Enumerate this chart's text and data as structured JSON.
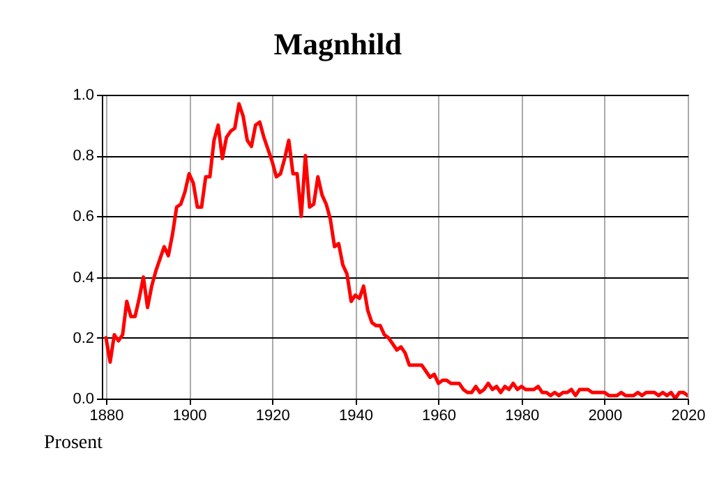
{
  "chart_data": {
    "type": "line",
    "title": "Magnhild",
    "ylabel": "Prosent",
    "x": [
      1880,
      1881,
      1882,
      1883,
      1884,
      1885,
      1886,
      1887,
      1888,
      1889,
      1890,
      1891,
      1892,
      1893,
      1894,
      1895,
      1896,
      1897,
      1898,
      1899,
      1900,
      1901,
      1902,
      1903,
      1904,
      1905,
      1906,
      1907,
      1908,
      1909,
      1910,
      1911,
      1912,
      1913,
      1914,
      1915,
      1916,
      1917,
      1918,
      1919,
      1920,
      1921,
      1922,
      1923,
      1924,
      1925,
      1926,
      1927,
      1928,
      1929,
      1930,
      1931,
      1932,
      1933,
      1934,
      1935,
      1936,
      1937,
      1938,
      1939,
      1940,
      1941,
      1942,
      1943,
      1944,
      1945,
      1946,
      1947,
      1948,
      1949,
      1950,
      1951,
      1952,
      1953,
      1954,
      1955,
      1956,
      1957,
      1958,
      1959,
      1960,
      1961,
      1962,
      1963,
      1964,
      1965,
      1966,
      1967,
      1968,
      1969,
      1970,
      1971,
      1972,
      1973,
      1974,
      1975,
      1976,
      1977,
      1978,
      1979,
      1980,
      1981,
      1982,
      1983,
      1984,
      1985,
      1986,
      1987,
      1988,
      1989,
      1990,
      1991,
      1992,
      1993,
      1994,
      1995,
      1996,
      1997,
      1998,
      1999,
      2000,
      2001,
      2002,
      2003,
      2004,
      2005,
      2006,
      2007,
      2008,
      2009,
      2010,
      2011,
      2012,
      2013,
      2014,
      2015,
      2016,
      2017,
      2018,
      2019,
      2020
    ],
    "series": [
      {
        "color": "#ff0000",
        "values": [
          0.2,
          0.12,
          0.21,
          0.19,
          0.21,
          0.32,
          0.27,
          0.27,
          0.33,
          0.4,
          0.3,
          0.37,
          0.42,
          0.46,
          0.5,
          0.47,
          0.54,
          0.63,
          0.64,
          0.68,
          0.74,
          0.71,
          0.63,
          0.63,
          0.73,
          0.73,
          0.85,
          0.9,
          0.79,
          0.86,
          0.88,
          0.89,
          0.97,
          0.93,
          0.85,
          0.83,
          0.9,
          0.91,
          0.86,
          0.82,
          0.78,
          0.73,
          0.74,
          0.79,
          0.85,
          0.74,
          0.74,
          0.6,
          0.8,
          0.63,
          0.64,
          0.73,
          0.67,
          0.64,
          0.59,
          0.5,
          0.51,
          0.44,
          0.41,
          0.32,
          0.34,
          0.33,
          0.37,
          0.29,
          0.25,
          0.24,
          0.24,
          0.21,
          0.2,
          0.18,
          0.16,
          0.17,
          0.15,
          0.11,
          0.11,
          0.11,
          0.11,
          0.09,
          0.07,
          0.08,
          0.05,
          0.06,
          0.06,
          0.05,
          0.05,
          0.05,
          0.03,
          0.02,
          0.02,
          0.04,
          0.02,
          0.03,
          0.05,
          0.03,
          0.04,
          0.02,
          0.04,
          0.03,
          0.05,
          0.03,
          0.04,
          0.03,
          0.03,
          0.03,
          0.04,
          0.02,
          0.02,
          0.01,
          0.02,
          0.01,
          0.02,
          0.02,
          0.03,
          0.01,
          0.03,
          0.03,
          0.03,
          0.02,
          0.02,
          0.02,
          0.02,
          0.01,
          0.01,
          0.01,
          0.02,
          0.01,
          0.01,
          0.01,
          0.02,
          0.01,
          0.02,
          0.02,
          0.02,
          0.01,
          0.02,
          0.01,
          0.02,
          0.0,
          0.02,
          0.02,
          0.01
        ]
      }
    ],
    "xlim": [
      1879,
      2020
    ],
    "xticks": [
      1880,
      1900,
      1920,
      1940,
      1960,
      1980,
      2000,
      2020
    ],
    "ylim": [
      0,
      1
    ],
    "yticks": [
      {
        "value": 0,
        "label": "0.0"
      },
      0.2,
      0.4,
      0.6,
      0.8,
      {
        "value": 1,
        "label": "1.0"
      }
    ],
    "grid": true,
    "line_style": "solid",
    "marker": "none",
    "legend": false
  }
}
